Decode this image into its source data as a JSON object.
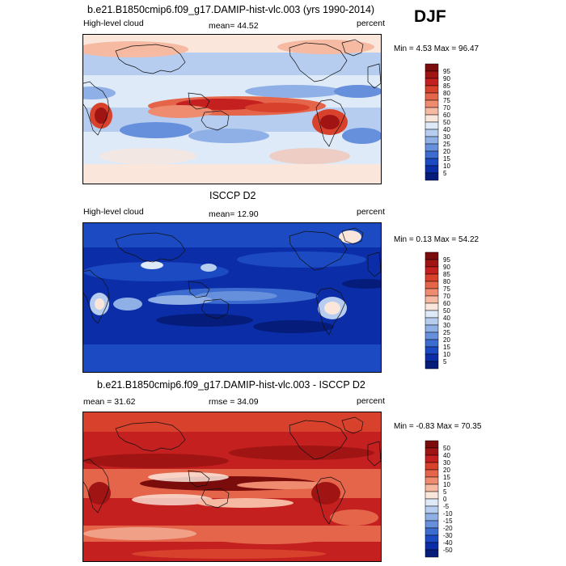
{
  "season": "DJF",
  "panels": [
    {
      "title": "b.e21.B1850cmip6.f09_g17.DAMIP-hist-vlc.003 (yrs 1990-2014)",
      "left_label": "High-level cloud",
      "center_label": "mean=  44.52",
      "right_label": "percent",
      "minmax": "Min =   4.53 Max =  96.47",
      "colorbar": {
        "labels": [
          "95",
          "90",
          "85",
          "80",
          "75",
          "70",
          "60",
          "50",
          "40",
          "30",
          "25",
          "20",
          "15",
          "10",
          "5"
        ],
        "colors": [
          "#7a0c0c",
          "#a11414",
          "#c52020",
          "#d8412c",
          "#e4654a",
          "#ef8c70",
          "#f6b9a2",
          "#fbe6dc",
          "#dfeaf8",
          "#b7cdf0",
          "#8fb0e6",
          "#6690dc",
          "#3c6cd0",
          "#1b4ac2",
          "#0b2ea8",
          "#061c7a"
        ],
        "pattern": "model"
      }
    },
    {
      "title": "ISCCP D2",
      "left_label": "High-level cloud",
      "center_label": "mean=  12.90",
      "right_label": "percent",
      "minmax": "Min =   0.13 Max =  54.22",
      "colorbar": {
        "labels": [
          "95",
          "90",
          "85",
          "80",
          "75",
          "70",
          "60",
          "50",
          "40",
          "30",
          "25",
          "20",
          "15",
          "10",
          "5"
        ],
        "colors": [
          "#7a0c0c",
          "#a11414",
          "#c52020",
          "#d8412c",
          "#e4654a",
          "#ef8c70",
          "#f6b9a2",
          "#fbe6dc",
          "#dfeaf8",
          "#b7cdf0",
          "#8fb0e6",
          "#6690dc",
          "#3c6cd0",
          "#1b4ac2",
          "#0b2ea8",
          "#061c7a"
        ],
        "pattern": "obs"
      }
    },
    {
      "title": "b.e21.B1850cmip6.f09_g17.DAMIP-hist-vlc.003 - ISCCP D2",
      "left_label": "mean =  31.62",
      "center_label": "rmse =  34.09",
      "right_label": "percent",
      "minmax": "Min =  -0.83 Max =  70.35",
      "colorbar": {
        "labels": [
          "50",
          "40",
          "30",
          "20",
          "15",
          "10",
          "5",
          "0",
          "-5",
          "-10",
          "-15",
          "-20",
          "-30",
          "-40",
          "-50"
        ],
        "colors": [
          "#7a0c0c",
          "#a11414",
          "#c52020",
          "#d8412c",
          "#e4654a",
          "#ef8c70",
          "#f6b9a2",
          "#fbe6dc",
          "#dfeaf8",
          "#b7cdf0",
          "#8fb0e6",
          "#6690dc",
          "#3c6cd0",
          "#1b4ac2",
          "#0b2ea8",
          "#061c7a"
        ],
        "pattern": "diff"
      }
    }
  ]
}
